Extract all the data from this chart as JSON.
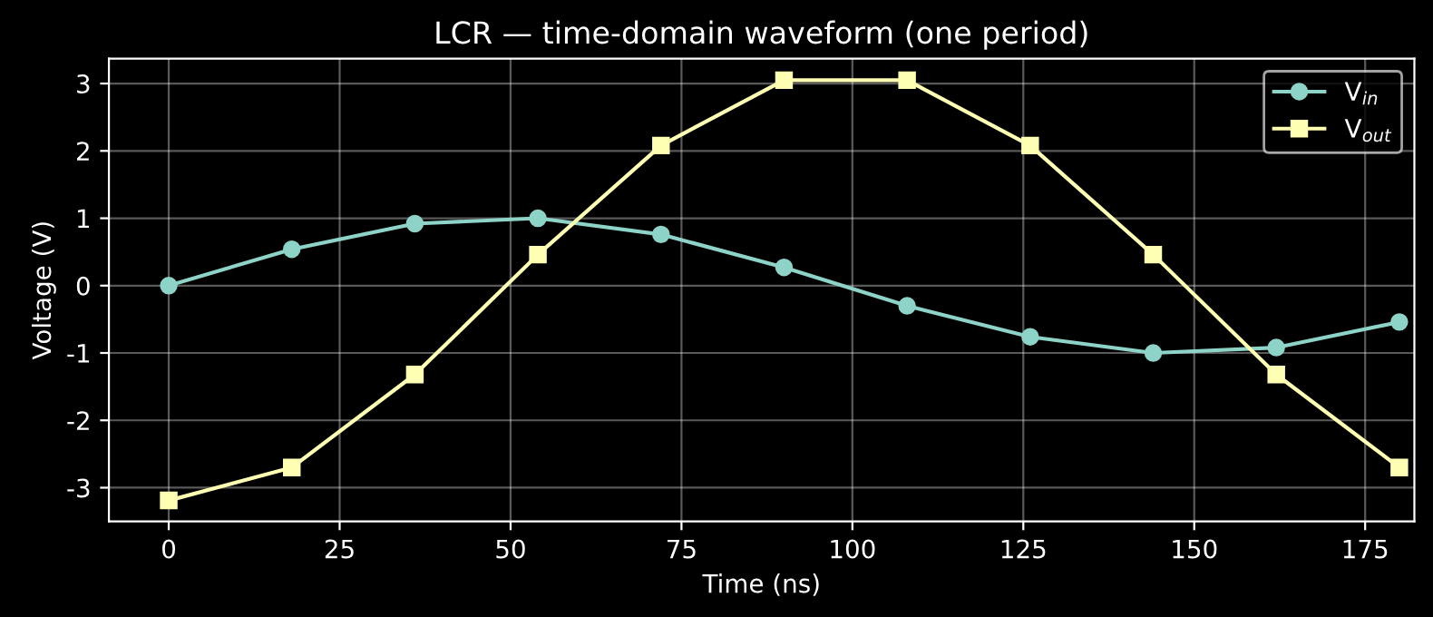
{
  "chart_data": {
    "type": "line",
    "title": "LCR — time-domain waveform (one period)",
    "xlabel": "Time (ns)",
    "ylabel": "Voltage (V)",
    "x": [
      0,
      18,
      36,
      54,
      72,
      90,
      108,
      126,
      144,
      162,
      180
    ],
    "series": [
      {
        "name": "V$_{in}$",
        "color": "#8dd3c7",
        "marker": "circle",
        "values": [
          0,
          0.54,
          0.92,
          1.0,
          0.76,
          0.27,
          -0.3,
          -0.76,
          -1.0,
          -0.92,
          -0.54
        ]
      },
      {
        "name": "V$_{out}$",
        "color": "#ffffb3",
        "marker": "square",
        "values": [
          -3.19,
          -2.7,
          -1.32,
          0.46,
          2.08,
          3.05,
          3.05,
          2.08,
          0.46,
          -1.32,
          -2.7
        ]
      }
    ],
    "xlim": [
      -8.75,
      182.2
    ],
    "ylim": [
      -3.5,
      3.37
    ],
    "xticks": [
      0,
      25,
      50,
      75,
      100,
      125,
      150,
      175
    ],
    "yticks": [
      -3,
      -2,
      -1,
      0,
      1,
      2,
      3
    ],
    "grid": true,
    "legend": "top right",
    "line_style": "solid"
  }
}
